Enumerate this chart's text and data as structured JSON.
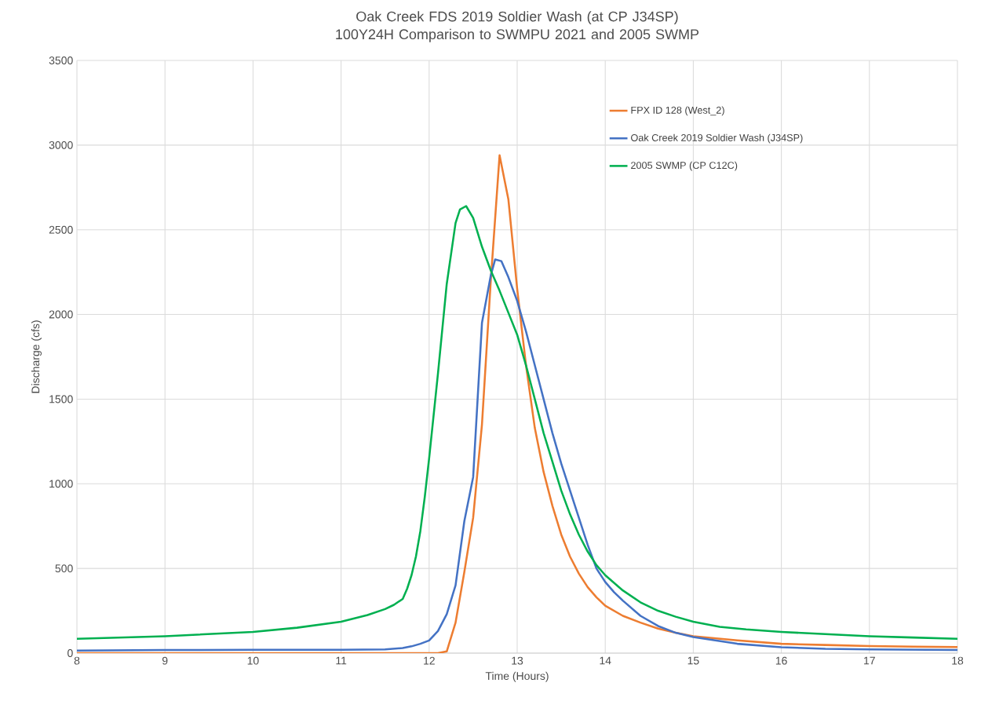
{
  "chart_data": {
    "type": "line",
    "title": "Oak Creek FDS 2019 Soldier Wash (at CP J34SP) 100Y24H Comparison to SWMPU 2021 and 2005 SWMP",
    "xlabel": "Time (Hours)",
    "ylabel": "Discharge (cfs)",
    "xlim": [
      8,
      18
    ],
    "xticks": [
      8,
      9,
      10,
      11,
      12,
      13,
      14,
      15,
      16,
      17,
      18
    ],
    "ylim": [
      0,
      3500
    ],
    "yticks": [
      0,
      500,
      1000,
      1500,
      2000,
      2500,
      3000,
      3500
    ],
    "grid": true,
    "legend": "top right",
    "marker": "none",
    "line_style": "solid",
    "series": [
      {
        "name": "FPX ID 128 (West_2)",
        "color": "#ed7d31",
        "x": [
          8,
          9,
          10,
          11,
          12,
          12.1,
          12.2,
          12.3,
          12.4,
          12.5,
          12.6,
          12.7,
          12.8,
          12.9,
          13,
          13.1,
          13.2,
          13.3,
          13.4,
          13.5,
          13.6,
          13.7,
          13.8,
          13.9,
          14,
          14.2,
          14.4,
          14.6,
          14.8,
          15,
          15.5,
          16,
          16.5,
          17,
          17.5,
          18
        ],
        "values": [
          0,
          0,
          0,
          0,
          0,
          0,
          10,
          180,
          480,
          800,
          1350,
          2200,
          2940,
          2680,
          2150,
          1700,
          1330,
          1070,
          870,
          700,
          570,
          470,
          390,
          330,
          280,
          220,
          180,
          145,
          120,
          100,
          75,
          55,
          48,
          42,
          38,
          36
        ]
      },
      {
        "name": "Oak Creek 2019 Soldier Wash (J34SP)",
        "color": "#4472c4",
        "x": [
          8,
          9,
          10,
          11,
          11.5,
          11.7,
          11.8,
          11.9,
          12,
          12.1,
          12.2,
          12.3,
          12.4,
          12.5,
          12.6,
          12.7,
          12.75,
          12.82,
          12.9,
          13,
          13.1,
          13.2,
          13.3,
          13.4,
          13.5,
          13.6,
          13.7,
          13.8,
          13.9,
          14,
          14.1,
          14.2,
          14.4,
          14.6,
          14.8,
          15,
          15.5,
          16,
          16.5,
          17,
          17.5,
          18
        ],
        "values": [
          15,
          18,
          20,
          20,
          22,
          30,
          40,
          55,
          75,
          130,
          230,
          400,
          780,
          1040,
          1950,
          2230,
          2325,
          2315,
          2220,
          2080,
          1900,
          1700,
          1500,
          1300,
          1120,
          960,
          800,
          640,
          500,
          420,
          360,
          310,
          220,
          160,
          120,
          95,
          55,
          35,
          25,
          22,
          20,
          18
        ]
      },
      {
        "name": "2005 SWMP (CP C12C)",
        "color": "#00b050",
        "x": [
          8,
          9,
          10,
          10.5,
          11,
          11.3,
          11.5,
          11.6,
          11.7,
          11.75,
          11.8,
          11.85,
          11.9,
          11.95,
          12,
          12.1,
          12.2,
          12.3,
          12.35,
          12.42,
          12.5,
          12.6,
          12.7,
          12.8,
          12.9,
          13,
          13.1,
          13.2,
          13.3,
          13.4,
          13.5,
          13.6,
          13.7,
          13.8,
          13.9,
          14,
          14.2,
          14.4,
          14.6,
          14.8,
          15,
          15.3,
          15.6,
          16,
          16.5,
          17,
          17.5,
          18
        ],
        "values": [
          85,
          100,
          125,
          150,
          185,
          225,
          260,
          285,
          320,
          380,
          460,
          570,
          720,
          920,
          1150,
          1650,
          2180,
          2540,
          2620,
          2640,
          2570,
          2400,
          2260,
          2140,
          2010,
          1880,
          1700,
          1500,
          1300,
          1130,
          960,
          820,
          700,
          600,
          520,
          460,
          370,
          300,
          250,
          215,
          185,
          155,
          140,
          125,
          112,
          100,
          92,
          85
        ]
      }
    ]
  }
}
